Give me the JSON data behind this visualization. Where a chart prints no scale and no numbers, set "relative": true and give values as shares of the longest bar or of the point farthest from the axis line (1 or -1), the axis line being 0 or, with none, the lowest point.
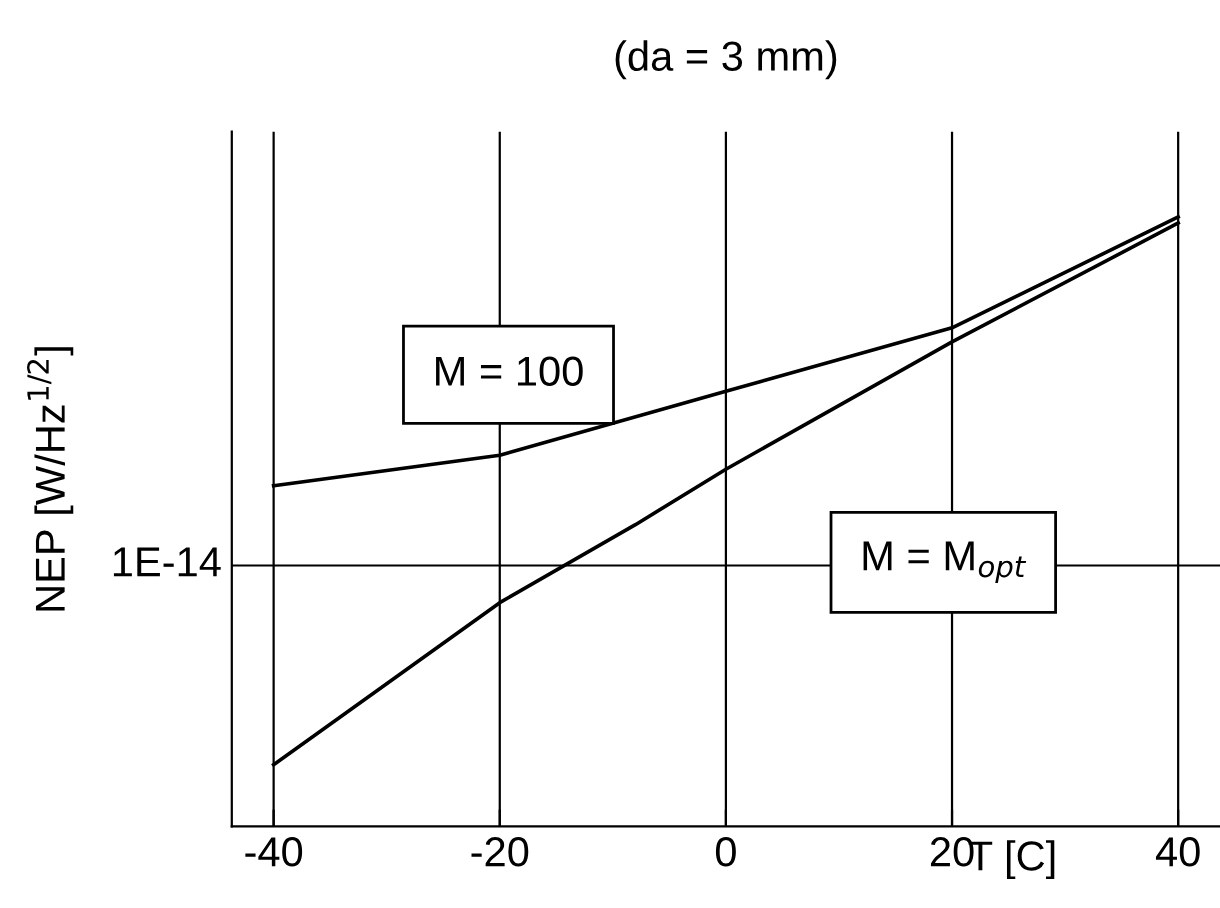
{
  "chart_data": {
    "type": "line",
    "title": "(da = 3 mm)",
    "xlabel": "T [C]",
    "ylabel": "NEP [W/Hz$^{1/2}$]",
    "relative": true,
    "xlim": [
      -43.7,
      43.7
    ],
    "xticks": [
      -40,
      -20,
      0,
      20,
      40
    ],
    "grid": "x",
    "legend": false,
    "tick_labels": "x",
    "ref_lines": [
      {
        "axis": "y",
        "value": 0.428,
        "label": "1E-14"
      }
    ],
    "series": [
      {
        "name": "M = 100",
        "color": "#000000",
        "x": [
          -40,
          -20,
          0,
          20,
          40
        ],
        "values": [
          0.559,
          0.609,
          0.714,
          0.818,
          1.0
        ]
      },
      {
        "name": "M = M$_{opt}$",
        "color": "#000000",
        "x": [
          -40,
          -20,
          -8,
          0,
          20,
          40
        ],
        "values": [
          0.101,
          0.367,
          0.495,
          0.586,
          0.795,
          0.99
        ]
      }
    ]
  }
}
